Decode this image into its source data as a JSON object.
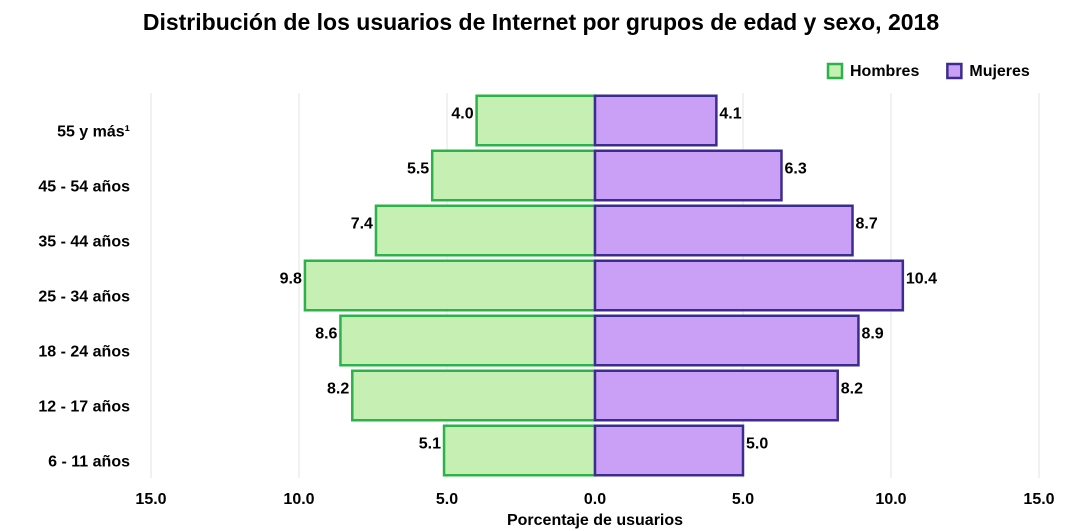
{
  "chart_data": {
    "type": "pyramid",
    "title": "Distribución de los usuarios de Internet por grupos de edad y sexo, 2018",
    "x_label": "Porcentaje de usuarios",
    "categories": [
      "55 y más¹",
      "45 - 54 años",
      "35 - 44 años",
      "25 - 34 años",
      "18 - 24 años",
      "12 - 17 años",
      "6 - 11 años"
    ],
    "series": [
      {
        "name": "Hombres",
        "color": "#c6efb3",
        "edge": "#2bb34a",
        "side": "left",
        "values": [
          4.0,
          5.5,
          7.4,
          9.8,
          8.6,
          8.2,
          5.1
        ],
        "value_labels": [
          "4.0",
          "5.5",
          "7.4",
          "9.8",
          "8.6",
          "8.2",
          "5.1"
        ]
      },
      {
        "name": "Mujeres",
        "color": "#c9a0f5",
        "edge": "#3b2d8f",
        "side": "right",
        "values": [
          4.1,
          6.3,
          8.7,
          10.4,
          8.9,
          8.2,
          5.0
        ],
        "value_labels": [
          "4.1",
          "6.3",
          "8.7",
          "10.4",
          "8.9",
          "8.2",
          "5.0"
        ]
      }
    ],
    "xlim": [
      -15,
      15
    ],
    "xticks": [
      {
        "value": -15,
        "label": "15.0"
      },
      {
        "value": -10,
        "label": "10.0"
      },
      {
        "value": -5,
        "label": "5.0"
      },
      {
        "value": 0,
        "label": "0.0"
      },
      {
        "value": 5,
        "label": "5.0"
      },
      {
        "value": 10,
        "label": "10.0"
      },
      {
        "value": 15,
        "label": "15.0"
      }
    ],
    "grid": true,
    "legend": "top-right"
  }
}
